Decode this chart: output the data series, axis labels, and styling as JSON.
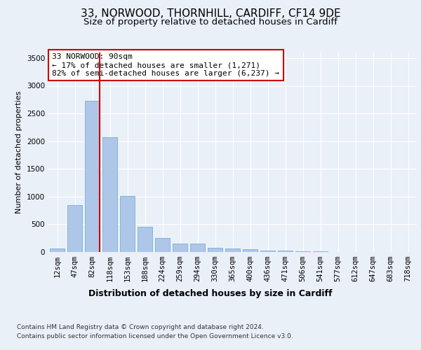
{
  "title1": "33, NORWOOD, THORNHILL, CARDIFF, CF14 9DE",
  "title2": "Size of property relative to detached houses in Cardiff",
  "xlabel": "Distribution of detached houses by size in Cardiff",
  "ylabel": "Number of detached properties",
  "categories": [
    "12sqm",
    "47sqm",
    "82sqm",
    "118sqm",
    "153sqm",
    "188sqm",
    "224sqm",
    "259sqm",
    "294sqm",
    "330sqm",
    "365sqm",
    "400sqm",
    "436sqm",
    "471sqm",
    "506sqm",
    "541sqm",
    "577sqm",
    "612sqm",
    "647sqm",
    "683sqm",
    "718sqm"
  ],
  "values": [
    60,
    850,
    2730,
    2075,
    1010,
    460,
    250,
    155,
    155,
    75,
    60,
    50,
    30,
    20,
    15,
    10,
    5,
    5,
    5,
    5,
    5
  ],
  "bar_color": "#aec6e8",
  "bar_edgecolor": "#7aafd4",
  "vline_color": "#cc0000",
  "vline_index": 2,
  "annotation_text": "33 NORWOOD: 90sqm\n← 17% of detached houses are smaller (1,271)\n82% of semi-detached houses are larger (6,237) →",
  "annotation_box_edgecolor": "#cc0000",
  "annotation_box_facecolor": "#ffffff",
  "footnote1": "Contains HM Land Registry data © Crown copyright and database right 2024.",
  "footnote2": "Contains public sector information licensed under the Open Government Licence v3.0.",
  "ylim": [
    0,
    3600
  ],
  "yticks": [
    0,
    500,
    1000,
    1500,
    2000,
    2500,
    3000,
    3500
  ],
  "bg_color": "#eaf0f8",
  "plot_bg_color": "#eaf0f8",
  "grid_color": "#ffffff",
  "title1_fontsize": 11,
  "title2_fontsize": 9.5,
  "xlabel_fontsize": 9,
  "ylabel_fontsize": 8,
  "tick_fontsize": 7.5,
  "annot_fontsize": 8,
  "footnote_fontsize": 6.5
}
